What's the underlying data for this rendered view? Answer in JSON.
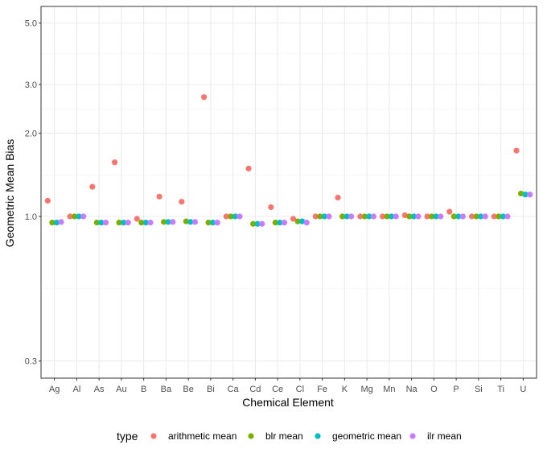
{
  "chart_data": {
    "type": "scatter",
    "xlabel": "Chemical Element",
    "ylabel": "Geometric Mean Bias",
    "y_scale": "log10",
    "ylim": [
      0.28,
      6.0
    ],
    "y_ticks": [
      0.3,
      1.0,
      2.0,
      3.0,
      5.0
    ],
    "y_tick_labels": [
      "0.3",
      "1.0",
      "2.0",
      "3.0",
      "5.0"
    ],
    "grid": true,
    "legend_position": "bottom",
    "legend_title": "type",
    "categories": [
      "Ag",
      "Al",
      "As",
      "Au",
      "B",
      "Ba",
      "Be",
      "Bi",
      "Ca",
      "Cd",
      "Ce",
      "Cl",
      "Fe",
      "K",
      "Mg",
      "Mn",
      "Na",
      "O",
      "P",
      "Si",
      "Ti",
      "U"
    ],
    "series": [
      {
        "name": "arithmetic mean",
        "color": "#F8766D",
        "values": [
          1.14,
          1.0,
          1.28,
          1.57,
          0.98,
          1.18,
          1.13,
          2.7,
          1.0,
          1.49,
          1.08,
          0.98,
          1.0,
          1.17,
          1.0,
          1.0,
          1.01,
          1.0,
          1.04,
          1.0,
          1.0,
          1.73
        ]
      },
      {
        "name": "blr mean",
        "color": "#7CAE00",
        "values": [
          0.95,
          1.0,
          0.95,
          0.95,
          0.95,
          0.955,
          0.96,
          0.95,
          1.0,
          0.94,
          0.95,
          0.96,
          1.0,
          1.0,
          1.0,
          1.0,
          1.0,
          1.0,
          1.0,
          1.0,
          1.0,
          1.21
        ]
      },
      {
        "name": "geometric mean",
        "color": "#00BFC4",
        "values": [
          0.95,
          1.0,
          0.95,
          0.95,
          0.95,
          0.955,
          0.955,
          0.95,
          1.0,
          0.94,
          0.95,
          0.96,
          1.0,
          1.0,
          1.0,
          1.0,
          1.0,
          1.0,
          1.0,
          1.0,
          1.0,
          1.2
        ]
      },
      {
        "name": "ilr mean",
        "color": "#C77CFF",
        "values": [
          0.955,
          1.0,
          0.95,
          0.95,
          0.95,
          0.955,
          0.955,
          0.95,
          1.0,
          0.94,
          0.95,
          0.95,
          1.0,
          1.0,
          1.0,
          1.0,
          1.0,
          1.0,
          1.0,
          1.0,
          1.0,
          1.2
        ]
      }
    ]
  }
}
